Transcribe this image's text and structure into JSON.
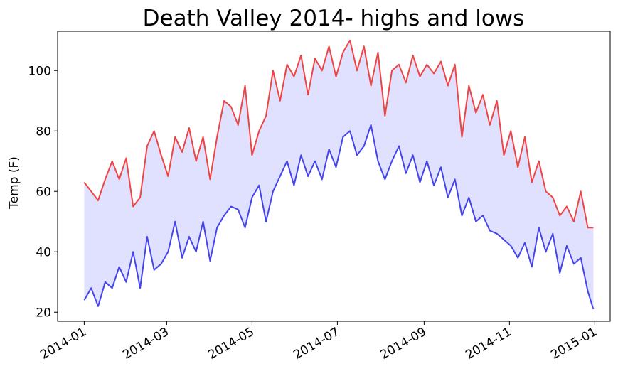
{
  "chart_data": {
    "type": "line",
    "title": "Death Valley 2014- highs and lows",
    "xlabel": "",
    "ylabel": "Temp (F)",
    "xlim": [
      "2013-12-13",
      "2015-01-12"
    ],
    "ylim": [
      17,
      113
    ],
    "x_ticks": [
      "2014-01",
      "2014-03",
      "2014-05",
      "2014-07",
      "2014-09",
      "2014-11",
      "2015-01"
    ],
    "y_ticks": [
      20,
      40,
      60,
      80,
      100
    ],
    "grid": false,
    "legend": "none",
    "fill_between": {
      "upper": "highs",
      "lower": "lows",
      "color": "#e0e0ff"
    },
    "x": [
      "2014-01-01",
      "2014-01-06",
      "2014-01-11",
      "2014-01-16",
      "2014-01-21",
      "2014-01-26",
      "2014-01-31",
      "2014-02-05",
      "2014-02-10",
      "2014-02-15",
      "2014-02-20",
      "2014-02-25",
      "2014-03-02",
      "2014-03-07",
      "2014-03-12",
      "2014-03-17",
      "2014-03-22",
      "2014-03-27",
      "2014-04-01",
      "2014-04-06",
      "2014-04-11",
      "2014-04-16",
      "2014-04-21",
      "2014-04-26",
      "2014-05-01",
      "2014-05-06",
      "2014-05-11",
      "2014-05-16",
      "2014-05-21",
      "2014-05-26",
      "2014-05-31",
      "2014-06-05",
      "2014-06-10",
      "2014-06-15",
      "2014-06-20",
      "2014-06-25",
      "2014-06-30",
      "2014-07-05",
      "2014-07-10",
      "2014-07-15",
      "2014-07-20",
      "2014-07-25",
      "2014-07-30",
      "2014-08-04",
      "2014-08-09",
      "2014-08-14",
      "2014-08-19",
      "2014-08-24",
      "2014-08-29",
      "2014-09-03",
      "2014-09-08",
      "2014-09-13",
      "2014-09-18",
      "2014-09-23",
      "2014-09-28",
      "2014-10-03",
      "2014-10-08",
      "2014-10-13",
      "2014-10-18",
      "2014-10-23",
      "2014-10-28",
      "2014-11-02",
      "2014-11-07",
      "2014-11-12",
      "2014-11-17",
      "2014-11-22",
      "2014-11-27",
      "2014-12-02",
      "2014-12-07",
      "2014-12-12",
      "2014-12-17",
      "2014-12-22",
      "2014-12-27",
      "2014-12-31"
    ],
    "series": [
      {
        "name": "highs",
        "color": "#ef4444",
        "values": [
          63,
          60,
          57,
          64,
          70,
          64,
          71,
          55,
          58,
          75,
          80,
          72,
          65,
          78,
          73,
          81,
          70,
          78,
          64,
          78,
          90,
          88,
          82,
          95,
          72,
          80,
          85,
          100,
          90,
          102,
          98,
          105,
          92,
          104,
          100,
          108,
          98,
          106,
          110,
          100,
          108,
          95,
          106,
          85,
          100,
          102,
          96,
          105,
          98,
          102,
          99,
          103,
          95,
          102,
          78,
          95,
          86,
          92,
          82,
          90,
          72,
          80,
          68,
          78,
          63,
          70,
          60,
          58,
          52,
          55,
          50,
          60,
          48,
          48
        ]
      },
      {
        "name": "lows",
        "color": "#4444ee",
        "values": [
          24,
          28,
          22,
          30,
          28,
          35,
          30,
          40,
          28,
          45,
          34,
          36,
          40,
          50,
          38,
          45,
          40,
          50,
          37,
          48,
          52,
          55,
          54,
          48,
          58,
          62,
          50,
          60,
          65,
          70,
          62,
          72,
          65,
          70,
          64,
          74,
          68,
          78,
          80,
          72,
          75,
          82,
          70,
          64,
          70,
          75,
          66,
          72,
          63,
          70,
          62,
          68,
          58,
          64,
          52,
          58,
          50,
          52,
          47,
          46,
          44,
          42,
          38,
          43,
          35,
          48,
          40,
          46,
          33,
          42,
          36,
          38,
          27,
          21
        ]
      }
    ]
  }
}
